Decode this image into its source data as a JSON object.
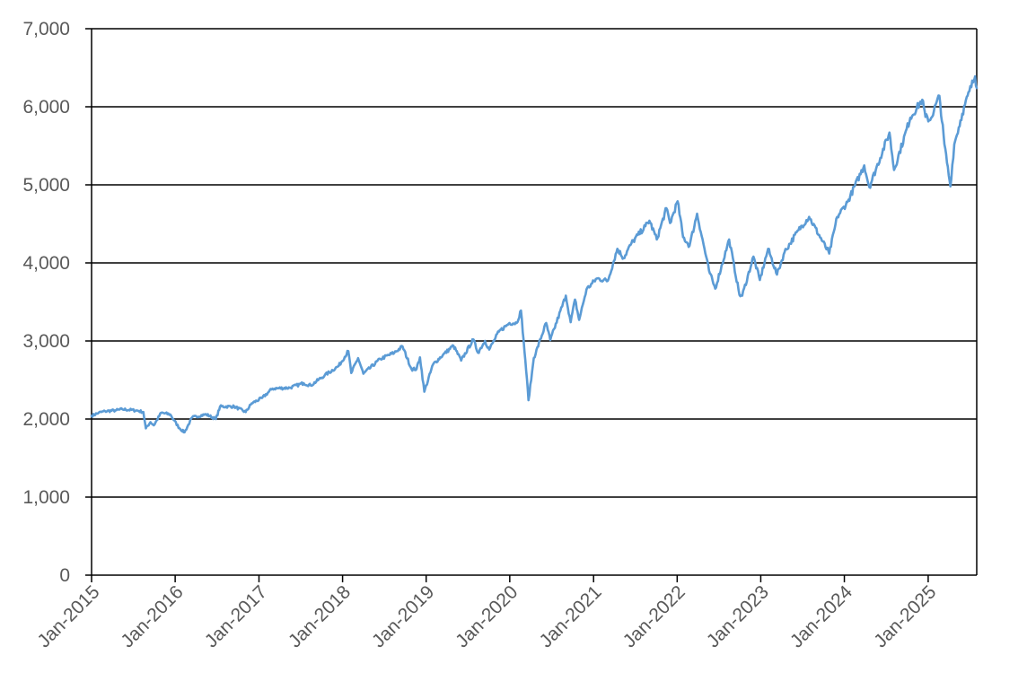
{
  "chart_data": {
    "type": "line",
    "title": "",
    "xlabel": "",
    "ylabel": "",
    "xlim": [
      "2015-01-01",
      "2025-08-01"
    ],
    "ylim": [
      0,
      7000
    ],
    "grid": "horizontal",
    "legend": "none",
    "colors": {
      "series": "#5b9bd5",
      "grid": "#000000",
      "tick_text": "#595959"
    },
    "y_ticks": [
      {
        "value": 0,
        "label": "0"
      },
      {
        "value": 1000,
        "label": "1,000"
      },
      {
        "value": 2000,
        "label": "2,000"
      },
      {
        "value": 3000,
        "label": "3,000"
      },
      {
        "value": 4000,
        "label": "4,000"
      },
      {
        "value": 5000,
        "label": "5,000"
      },
      {
        "value": 6000,
        "label": "6,000"
      },
      {
        "value": 7000,
        "label": "7,000"
      }
    ],
    "x_ticks": [
      {
        "date": "2015-01-01",
        "label": "Jan-2015"
      },
      {
        "date": "2016-01-01",
        "label": "Jan-2016"
      },
      {
        "date": "2017-01-01",
        "label": "Jan-2017"
      },
      {
        "date": "2018-01-01",
        "label": "Jan-2018"
      },
      {
        "date": "2019-01-01",
        "label": "Jan-2019"
      },
      {
        "date": "2020-01-01",
        "label": "Jan-2020"
      },
      {
        "date": "2021-01-01",
        "label": "Jan-2021"
      },
      {
        "date": "2022-01-01",
        "label": "Jan-2022"
      },
      {
        "date": "2023-01-01",
        "label": "Jan-2023"
      },
      {
        "date": "2024-01-01",
        "label": "Jan-2024"
      },
      {
        "date": "2025-01-01",
        "label": "Jan-2025"
      }
    ],
    "series": [
      {
        "points": [
          [
            "2015-01-01",
            2040
          ],
          [
            "2015-02-01",
            2080
          ],
          [
            "2015-03-01",
            2100
          ],
          [
            "2015-04-15",
            2110
          ],
          [
            "2015-05-15",
            2125
          ],
          [
            "2015-07-15",
            2110
          ],
          [
            "2015-08-15",
            2090
          ],
          [
            "2015-08-26",
            1880
          ],
          [
            "2015-09-15",
            1960
          ],
          [
            "2015-09-30",
            1920
          ],
          [
            "2015-11-01",
            2080
          ],
          [
            "2015-12-10",
            2060
          ],
          [
            "2016-01-20",
            1880
          ],
          [
            "2016-02-11",
            1830
          ],
          [
            "2016-03-15",
            2020
          ],
          [
            "2016-05-15",
            2060
          ],
          [
            "2016-06-27",
            2000
          ],
          [
            "2016-07-15",
            2160
          ],
          [
            "2016-09-15",
            2160
          ],
          [
            "2016-11-04",
            2090
          ],
          [
            "2016-11-30",
            2200
          ],
          [
            "2017-01-15",
            2270
          ],
          [
            "2017-03-01",
            2390
          ],
          [
            "2017-05-15",
            2400
          ],
          [
            "2017-07-15",
            2460
          ],
          [
            "2017-08-15",
            2430
          ],
          [
            "2017-10-15",
            2560
          ],
          [
            "2017-12-15",
            2680
          ],
          [
            "2018-01-26",
            2870
          ],
          [
            "2018-02-08",
            2590
          ],
          [
            "2018-03-10",
            2780
          ],
          [
            "2018-04-02",
            2580
          ],
          [
            "2018-06-15",
            2770
          ],
          [
            "2018-08-15",
            2850
          ],
          [
            "2018-09-20",
            2930
          ],
          [
            "2018-10-29",
            2640
          ],
          [
            "2018-11-20",
            2640
          ],
          [
            "2018-12-05",
            2790
          ],
          [
            "2018-12-24",
            2350
          ],
          [
            "2019-01-31",
            2700
          ],
          [
            "2019-03-15",
            2820
          ],
          [
            "2019-04-30",
            2940
          ],
          [
            "2019-06-03",
            2750
          ],
          [
            "2019-07-26",
            3020
          ],
          [
            "2019-08-15",
            2850
          ],
          [
            "2019-09-15",
            3000
          ],
          [
            "2019-10-03",
            2890
          ],
          [
            "2019-11-15",
            3120
          ],
          [
            "2019-12-31",
            3230
          ],
          [
            "2020-01-31",
            3230
          ],
          [
            "2020-02-19",
            3390
          ],
          [
            "2020-03-09",
            2750
          ],
          [
            "2020-03-23",
            2240
          ],
          [
            "2020-04-15",
            2780
          ],
          [
            "2020-06-08",
            3230
          ],
          [
            "2020-06-26",
            3010
          ],
          [
            "2020-09-02",
            3580
          ],
          [
            "2020-09-23",
            3240
          ],
          [
            "2020-10-12",
            3530
          ],
          [
            "2020-10-30",
            3270
          ],
          [
            "2020-12-01",
            3660
          ],
          [
            "2021-01-15",
            3800
          ],
          [
            "2021-03-04",
            3770
          ],
          [
            "2021-04-15",
            4180
          ],
          [
            "2021-05-12",
            4060
          ],
          [
            "2021-06-15",
            4250
          ],
          [
            "2021-08-15",
            4470
          ],
          [
            "2021-09-02",
            4540
          ],
          [
            "2021-10-04",
            4300
          ],
          [
            "2021-11-15",
            4700
          ],
          [
            "2021-12-01",
            4510
          ],
          [
            "2022-01-03",
            4790
          ],
          [
            "2022-01-27",
            4330
          ],
          [
            "2022-02-24",
            4220
          ],
          [
            "2022-03-29",
            4630
          ],
          [
            "2022-05-20",
            3900
          ],
          [
            "2022-06-16",
            3670
          ],
          [
            "2022-08-16",
            4300
          ],
          [
            "2022-09-30",
            3590
          ],
          [
            "2022-10-12",
            3580
          ],
          [
            "2022-11-30",
            4080
          ],
          [
            "2022-12-28",
            3780
          ],
          [
            "2023-02-02",
            4180
          ],
          [
            "2023-03-13",
            3850
          ],
          [
            "2023-04-15",
            4140
          ],
          [
            "2023-06-15",
            4420
          ],
          [
            "2023-07-31",
            4590
          ],
          [
            "2023-10-27",
            4120
          ],
          [
            "2023-12-01",
            4590
          ],
          [
            "2024-01-15",
            4780
          ],
          [
            "2024-03-28",
            5250
          ],
          [
            "2024-04-19",
            4970
          ],
          [
            "2024-07-16",
            5670
          ],
          [
            "2024-08-05",
            5190
          ],
          [
            "2024-10-15",
            5860
          ],
          [
            "2024-12-06",
            6090
          ],
          [
            "2024-12-20",
            5870
          ],
          [
            "2025-01-10",
            5830
          ],
          [
            "2025-02-19",
            6140
          ],
          [
            "2025-03-13",
            5520
          ],
          [
            "2025-04-08",
            4980
          ],
          [
            "2025-04-25",
            5520
          ],
          [
            "2025-05-30",
            5910
          ],
          [
            "2025-06-30",
            6200
          ],
          [
            "2025-07-25",
            6390
          ],
          [
            "2025-08-01",
            6240
          ]
        ]
      }
    ]
  }
}
